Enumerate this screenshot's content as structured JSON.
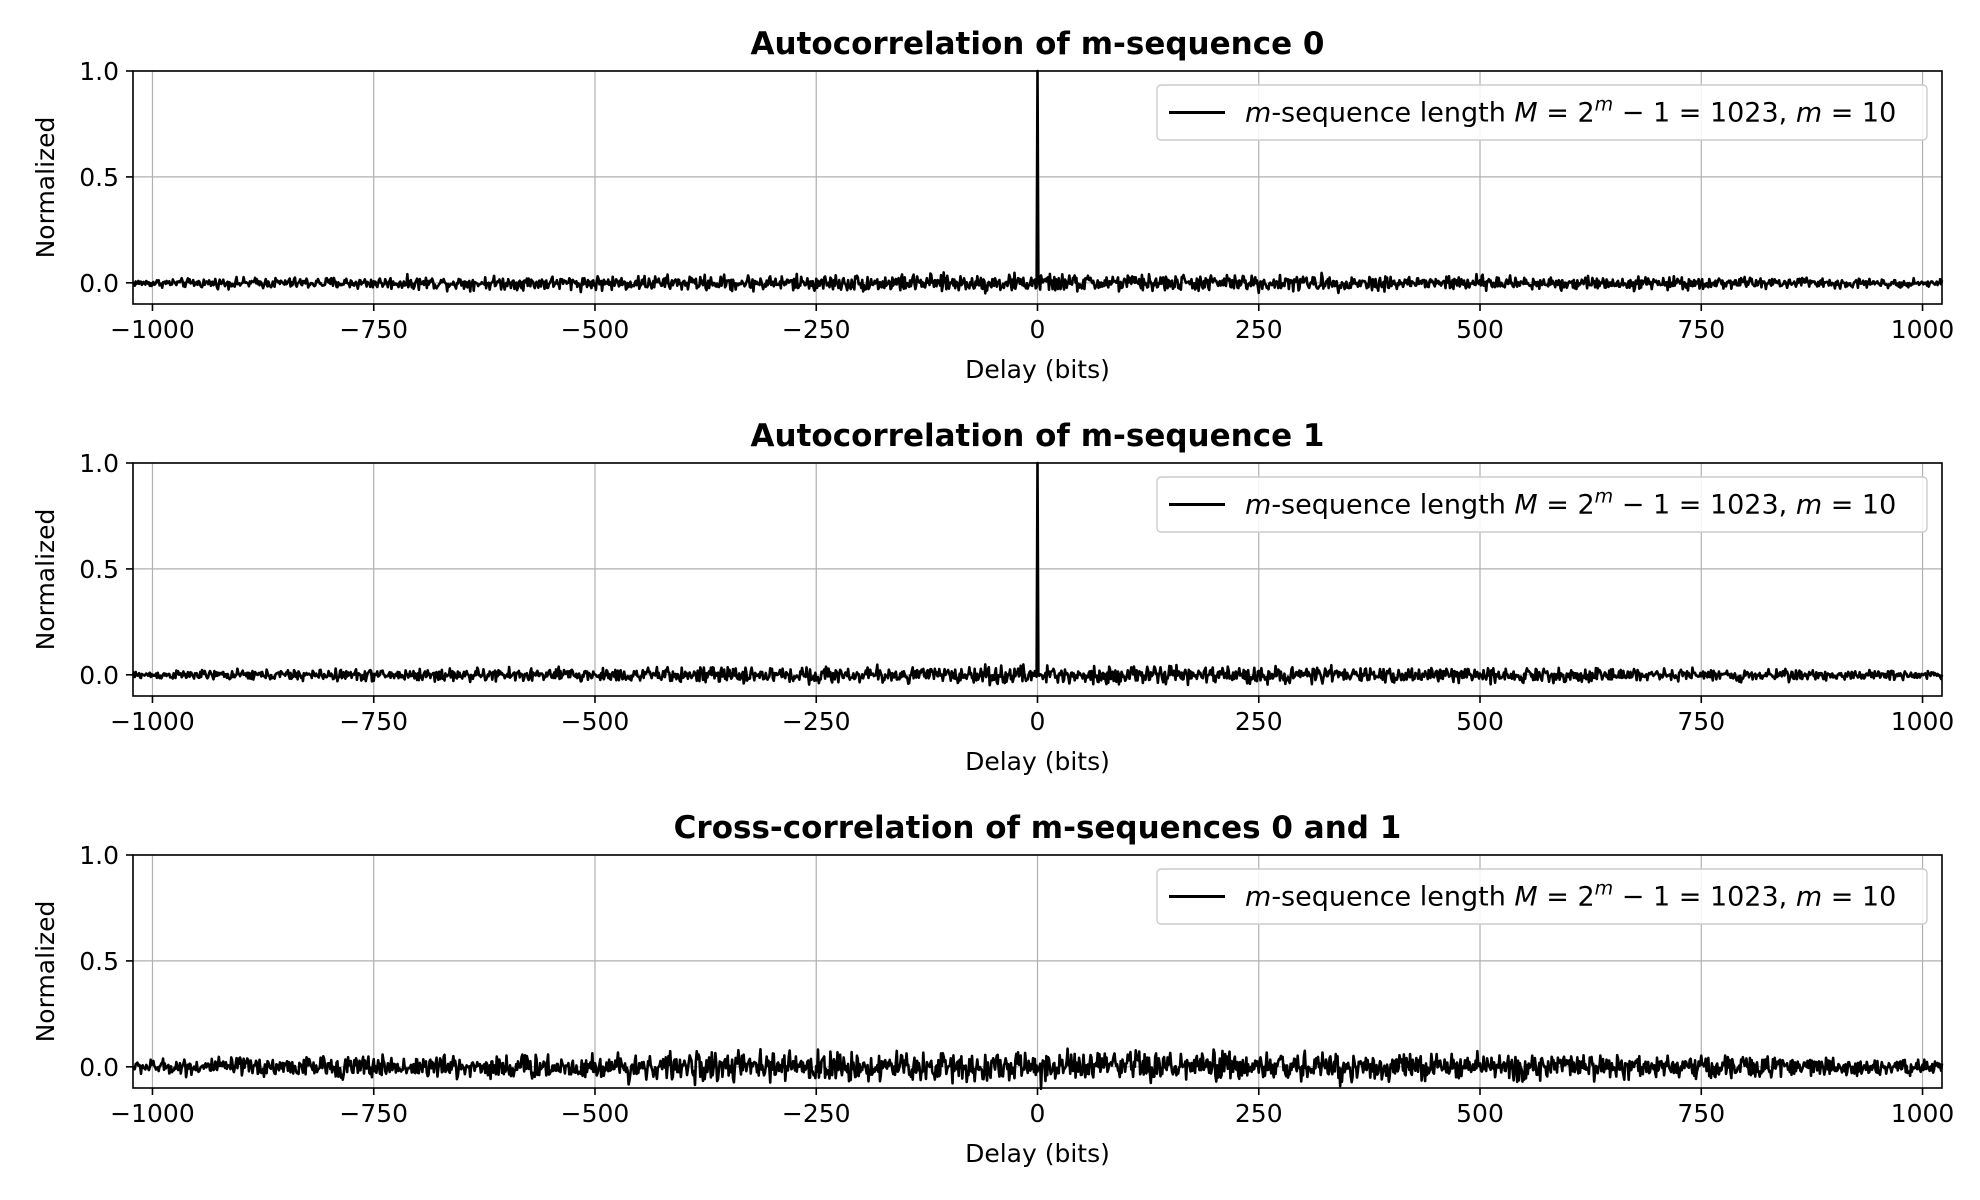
{
  "chart_data": [
    {
      "type": "line",
      "title": "Autocorrelation of m-sequence 0",
      "xlabel": "Delay (bits)",
      "ylabel": "Normalized",
      "xlim": [
        -1022,
        1022
      ],
      "ylim": [
        -0.1,
        1.0
      ],
      "xticks": [
        -1000,
        -750,
        -500,
        -250,
        0,
        250,
        500,
        750,
        1000
      ],
      "xtick_labels": [
        "−1000",
        "−750",
        "−500",
        "−250",
        "0",
        "250",
        "500",
        "750",
        "1000"
      ],
      "yticks": [
        0.0,
        0.5,
        1.0
      ],
      "ytick_labels": [
        "0.0",
        "0.5",
        "1.0"
      ],
      "grid": true,
      "legend_position": "upper right",
      "color": "#000000",
      "series": [
        {
          "name": "m-sequence length M = 2^m − 1 = 1023,  m = 10",
          "label_parts": [
            "m",
            "-sequence length ",
            "M",
            " = 2",
            "m",
            " − 1 = 1023,   ",
            "m",
            " = 10"
          ],
          "x": [
            -1022,
            1022
          ],
          "peak": {
            "x": 0,
            "y": 1.0
          },
          "sidelobe_value": -0.000978,
          "sidelobe_spread": 0.035
        }
      ]
    },
    {
      "type": "line",
      "title": "Autocorrelation of m-sequence 1",
      "xlabel": "Delay (bits)",
      "ylabel": "Normalized",
      "xlim": [
        -1022,
        1022
      ],
      "ylim": [
        -0.1,
        1.0
      ],
      "xticks": [
        -1000,
        -750,
        -500,
        -250,
        0,
        250,
        500,
        750,
        1000
      ],
      "xtick_labels": [
        "−1000",
        "−750",
        "−500",
        "−250",
        "0",
        "250",
        "500",
        "750",
        "1000"
      ],
      "yticks": [
        0.0,
        0.5,
        1.0
      ],
      "ytick_labels": [
        "0.0",
        "0.5",
        "1.0"
      ],
      "grid": true,
      "legend_position": "upper right",
      "color": "#000000",
      "series": [
        {
          "name": "m-sequence length M = 2^m − 1 = 1023,  m = 10",
          "label_parts": [
            "m",
            "-sequence length ",
            "M",
            " = 2",
            "m",
            " − 1 = 1023,   ",
            "m",
            " = 10"
          ],
          "x": [
            -1022,
            1022
          ],
          "peak": {
            "x": 0,
            "y": 1.0
          },
          "sidelobe_value": -0.000978,
          "sidelobe_spread": 0.035
        }
      ]
    },
    {
      "type": "line",
      "title": "Cross-correlation of m-sequences 0 and 1",
      "xlabel": "Delay (bits)",
      "ylabel": "Normalized",
      "xlim": [
        -1022,
        1022
      ],
      "ylim": [
        -0.1,
        1.0
      ],
      "xticks": [
        -1000,
        -750,
        -500,
        -250,
        0,
        250,
        500,
        750,
        1000
      ],
      "xtick_labels": [
        "−1000",
        "−750",
        "−500",
        "−250",
        "0",
        "250",
        "500",
        "750",
        "1000"
      ],
      "yticks": [
        0.0,
        0.5,
        1.0
      ],
      "ytick_labels": [
        "0.0",
        "0.5",
        "1.0"
      ],
      "grid": true,
      "legend_position": "upper right",
      "color": "#000000",
      "series": [
        {
          "name": "m-sequence length M = 2^m − 1 = 1023,  m = 10",
          "label_parts": [
            "m",
            "-sequence length ",
            "M",
            " = 2",
            "m",
            " − 1 = 1023,   ",
            "m",
            " = 10"
          ],
          "x": [
            -1022,
            1022
          ],
          "peak": null,
          "sidelobe_value": 0.0,
          "sidelobe_spread": 0.065
        }
      ]
    }
  ]
}
